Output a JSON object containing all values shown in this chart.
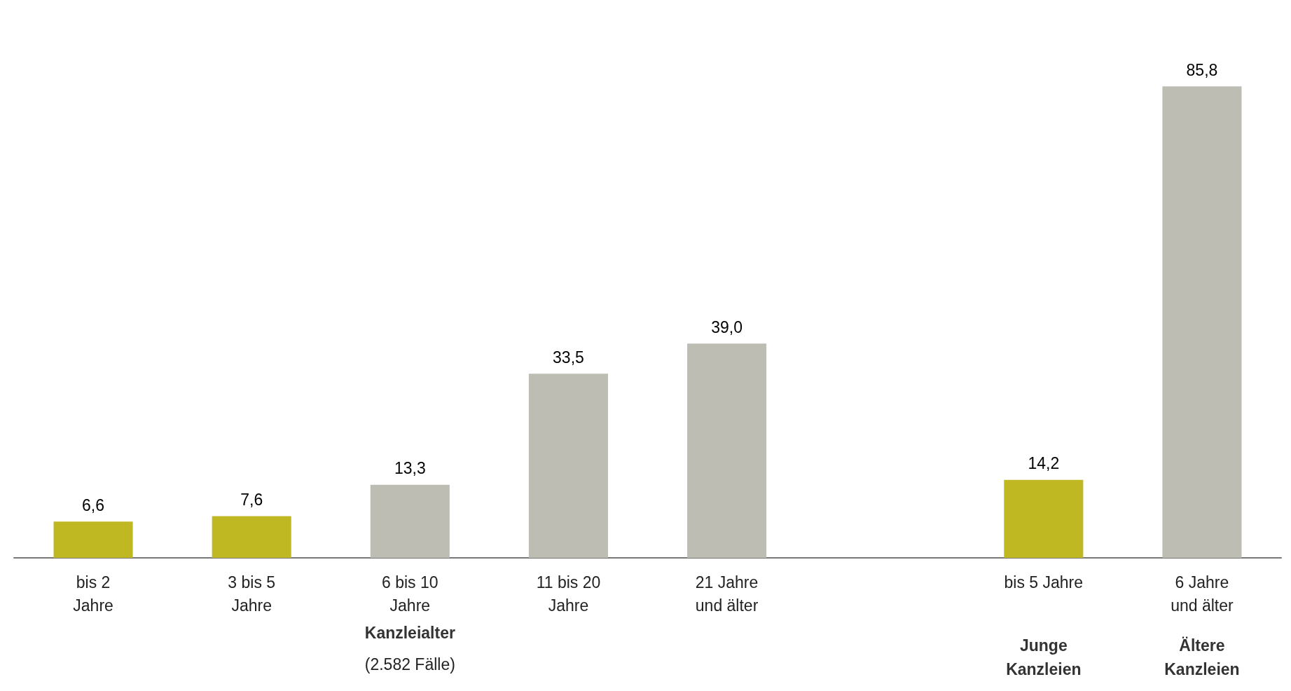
{
  "chart_data": {
    "type": "bar",
    "categories": [
      "bis 2\nJahre",
      "3 bis 5\nJahre",
      "6 bis 10\nJahre",
      "11 bis 20\nJahre",
      "21 Jahre\nund älter",
      null,
      "bis 5 Jahre",
      "6 Jahre\nund älter"
    ],
    "values": [
      6.6,
      7.6,
      13.3,
      33.5,
      39.0,
      null,
      14.2,
      85.8
    ],
    "colors": [
      "#bfb823",
      "#bfb823",
      "#bdbdb3",
      "#bdbdb3",
      "#bdbdb3",
      null,
      "#bfb823",
      "#bdbdb3"
    ],
    "value_labels": [
      "6,6",
      "7,6",
      "13,3",
      "33,5",
      "39,0",
      null,
      "14,2",
      "85,8"
    ],
    "annotations": [
      "Kanzleialter",
      "(2.582 Fälle)",
      "Junge\nKanzleien",
      "Ältere\nKanzleien"
    ],
    "orientation": "vertical"
  }
}
